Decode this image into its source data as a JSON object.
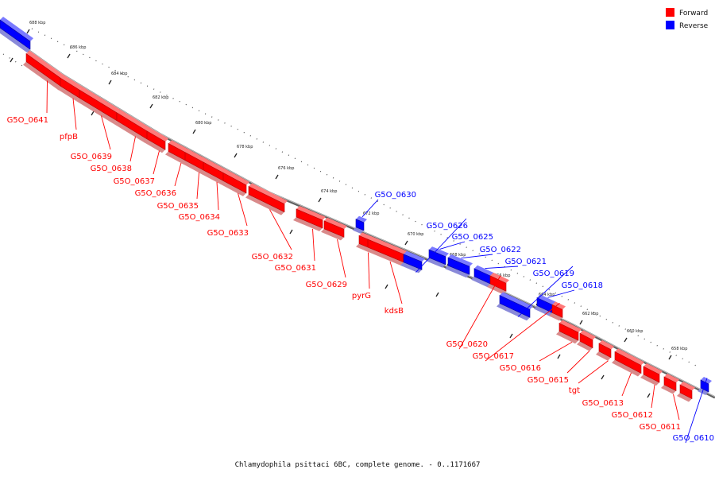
{
  "caption": "Chlamydophila psittaci 6BC, complete genome. - 0..1171667",
  "legend": [
    {
      "label": "Forward",
      "color": "#ff0000"
    },
    {
      "label": "Reverse",
      "color": "#0000ff"
    }
  ],
  "colors": {
    "forward": "#ff0000",
    "reverse": "#0000ff",
    "backbone": "#7a7a7a",
    "tick": "#222222"
  },
  "ticks": [
    "688 kbp",
    "686 kbp",
    "684 kbp",
    "682 kbp",
    "680 kbp",
    "678 kbp",
    "676 kbp",
    "674 kbp",
    "672 kbp",
    "670 kbp",
    "668 kbp",
    "666 kbp",
    "664 kbp",
    "662 kbp",
    "660 kbp",
    "658 kbp"
  ],
  "genes": [
    {
      "name": "",
      "strand": "reverse"
    },
    {
      "name": "G5O_0641",
      "strand": "forward"
    },
    {
      "name": "pfpB",
      "strand": "forward"
    },
    {
      "name": "G5O_0639",
      "strand": "forward"
    },
    {
      "name": "G5O_0638",
      "strand": "forward"
    },
    {
      "name": "G5O_0637",
      "strand": "forward"
    },
    {
      "name": "G5O_0636",
      "strand": "forward"
    },
    {
      "name": "G5O_0635",
      "strand": "forward"
    },
    {
      "name": "G5O_0634",
      "strand": "forward"
    },
    {
      "name": "G5O_0633",
      "strand": "forward"
    },
    {
      "name": "G5O_0632",
      "strand": "forward"
    },
    {
      "name": "G5O_0631",
      "strand": "forward"
    },
    {
      "name": "G5O_0630",
      "strand": "reverse"
    },
    {
      "name": "G5O_0629",
      "strand": "forward"
    },
    {
      "name": "pyrG",
      "strand": "forward"
    },
    {
      "name": "kdsB",
      "strand": "forward"
    },
    {
      "name": "G5O_0626",
      "strand": "reverse"
    },
    {
      "name": "G5O_0625",
      "strand": "reverse"
    },
    {
      "name": "G5O_0622",
      "strand": "reverse"
    },
    {
      "name": "G5O_0621",
      "strand": "reverse"
    },
    {
      "name": "G5O_0620",
      "strand": "forward"
    },
    {
      "name": "G5O_0619",
      "strand": "reverse"
    },
    {
      "name": "G5O_0618",
      "strand": "reverse"
    },
    {
      "name": "G5O_0617",
      "strand": "forward"
    },
    {
      "name": "G5O_0616",
      "strand": "forward"
    },
    {
      "name": "G5O_0615",
      "strand": "forward"
    },
    {
      "name": "tgt",
      "strand": "forward"
    },
    {
      "name": "G5O_0613",
      "strand": "forward"
    },
    {
      "name": "G5O_0612",
      "strand": "forward"
    },
    {
      "name": "G5O_0611",
      "strand": "forward"
    },
    {
      "name": "G5O_0610",
      "strand": "reverse"
    },
    {
      "name": "",
      "strand": "forward"
    }
  ]
}
